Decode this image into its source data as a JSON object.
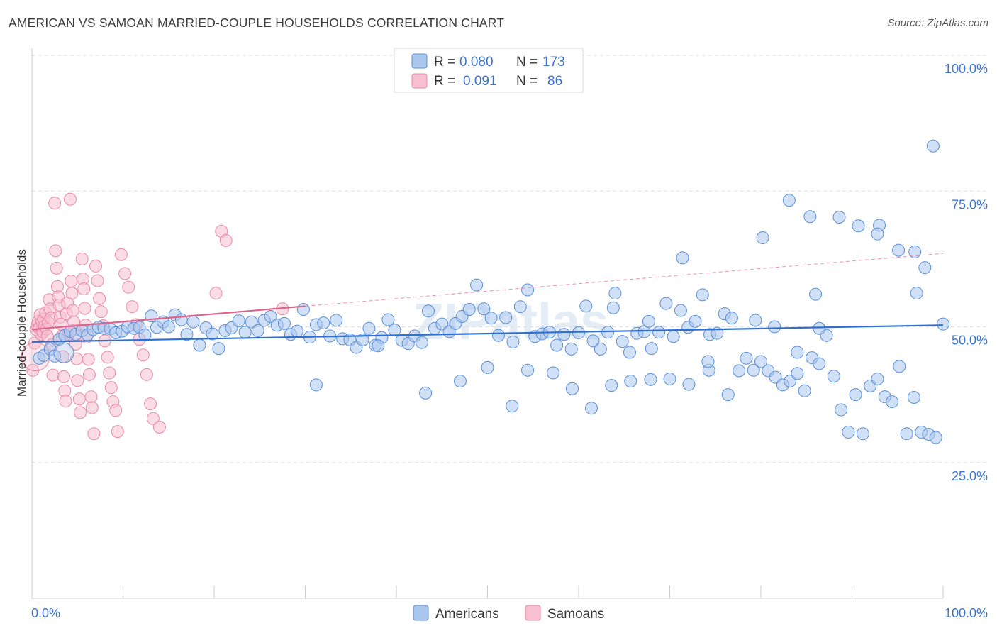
{
  "title": "AMERICAN VS SAMOAN MARRIED-COUPLE HOUSEHOLDS CORRELATION CHART",
  "source": "Source: ZipAtlas.com",
  "watermark": "ZIPatlas",
  "colors": {
    "americans": "#a9c7ee",
    "americans_stroke": "#5b8fd6",
    "americans_line": "#2f6fd1",
    "samoans": "#f7bfd0",
    "samoans_stroke": "#e98aa8",
    "samoans_line": "#e0638a",
    "axis_label": "#3b74c8",
    "grid": "#dddddd"
  },
  "legend": {
    "r_label": "R =",
    "n_label": "N =",
    "americans": {
      "r": "0.080",
      "n": "173"
    },
    "samoans": {
      "r": "0.091",
      "n": "86"
    }
  },
  "chart_data": {
    "type": "scatter",
    "title": "AMERICAN VS SAMOAN MARRIED-COUPLE HOUSEHOLDS CORRELATION CHART",
    "xlabel": "",
    "ylabel": "Married-couple Households",
    "xlim": [
      0,
      100
    ],
    "ylim": [
      0,
      100
    ],
    "x_tick_labels": [
      "0.0%",
      "100.0%"
    ],
    "y_tick_labels": [
      "25.0%",
      "50.0%",
      "75.0%",
      "100.0%"
    ],
    "y_ticks": [
      25,
      50,
      75,
      100
    ],
    "grid": true,
    "legend_position": "top-center",
    "series": [
      {
        "name": "Americans",
        "trend": {
          "x0": 0,
          "y0": 47.2,
          "x1": 100,
          "y1": 50.3
        },
        "points": [
          [
            0.8,
            44.2
          ],
          [
            1.3,
            44.7
          ],
          [
            2.0,
            45.9
          ],
          [
            2.5,
            44.6
          ],
          [
            3.0,
            47.7
          ],
          [
            3.6,
            48.4
          ],
          [
            4.2,
            49.1
          ],
          [
            4.8,
            48.6
          ],
          [
            5.5,
            49.3
          ],
          [
            6.1,
            48.5
          ],
          [
            6.7,
            49.5
          ],
          [
            7.3,
            49.9
          ],
          [
            7.9,
            49.7
          ],
          [
            8.6,
            49.6
          ],
          [
            9.2,
            48.9
          ],
          [
            9.9,
            49.2
          ],
          [
            10.5,
            50.0
          ],
          [
            11.2,
            49.7
          ],
          [
            11.8,
            49.9
          ],
          [
            12.4,
            48.5
          ],
          [
            13.1,
            52.0
          ],
          [
            13.7,
            49.9
          ],
          [
            14.4,
            50.9
          ],
          [
            15.0,
            50.0
          ],
          [
            15.7,
            52.2
          ],
          [
            16.4,
            51.3
          ],
          [
            17.0,
            48.6
          ],
          [
            17.7,
            50.9
          ],
          [
            18.4,
            46.6
          ],
          [
            19.1,
            49.8
          ],
          [
            19.8,
            48.7
          ],
          [
            20.5,
            46.0
          ],
          [
            21.2,
            49.3
          ],
          [
            21.9,
            49.8
          ],
          [
            22.7,
            51.1
          ],
          [
            23.4,
            49.0
          ],
          [
            24.1,
            50.9
          ],
          [
            24.8,
            49.3
          ],
          [
            25.5,
            51.2
          ],
          [
            26.2,
            51.9
          ],
          [
            26.9,
            50.3
          ],
          [
            27.7,
            50.6
          ],
          [
            28.4,
            48.6
          ],
          [
            29.1,
            49.2
          ],
          [
            29.8,
            53.2
          ],
          [
            30.5,
            48.1
          ],
          [
            31.2,
            50.4
          ],
          [
            32.0,
            50.7
          ],
          [
            32.7,
            48.3
          ],
          [
            33.4,
            51.2
          ],
          [
            34.1,
            47.8
          ],
          [
            34.9,
            47.6
          ],
          [
            35.6,
            46.2
          ],
          [
            36.3,
            47.6
          ],
          [
            37.0,
            49.7
          ],
          [
            37.7,
            46.6
          ],
          [
            38.4,
            48.0
          ],
          [
            39.1,
            51.3
          ],
          [
            39.8,
            49.4
          ],
          [
            40.6,
            47.5
          ],
          [
            41.3,
            46.9
          ],
          [
            42.0,
            48.3
          ],
          [
            42.8,
            47.1
          ],
          [
            43.5,
            52.9
          ],
          [
            44.2,
            49.7
          ],
          [
            45.0,
            50.5
          ],
          [
            45.8,
            49.1
          ],
          [
            46.5,
            50.6
          ],
          [
            47.2,
            51.9
          ],
          [
            48.0,
            53.2
          ],
          [
            48.8,
            57.7
          ],
          [
            49.6,
            53.3
          ],
          [
            50.4,
            51.6
          ],
          [
            51.2,
            48.4
          ],
          [
            52.0,
            51.7
          ],
          [
            52.8,
            47.2
          ],
          [
            53.6,
            53.7
          ],
          [
            54.4,
            56.8
          ],
          [
            55.2,
            48.2
          ],
          [
            56.0,
            48.7
          ],
          [
            56.8,
            49.0
          ],
          [
            57.6,
            46.6
          ],
          [
            58.4,
            48.6
          ],
          [
            59.2,
            45.9
          ],
          [
            60.0,
            48.9
          ],
          [
            60.8,
            53.8
          ],
          [
            61.6,
            47.4
          ],
          [
            62.4,
            45.9
          ],
          [
            63.2,
            49.0
          ],
          [
            64.0,
            56.2
          ],
          [
            64.8,
            47.3
          ],
          [
            65.6,
            45.3
          ],
          [
            66.4,
            48.8
          ],
          [
            67.2,
            49.1
          ],
          [
            68.0,
            46.0
          ],
          [
            68.8,
            49.0
          ],
          [
            69.6,
            54.3
          ],
          [
            70.4,
            48.2
          ],
          [
            71.2,
            53.0
          ],
          [
            72.0,
            49.9
          ],
          [
            72.8,
            51.0
          ],
          [
            73.6,
            55.9
          ],
          [
            74.4,
            48.6
          ],
          [
            75.2,
            48.8
          ],
          [
            76.0,
            52.4
          ],
          [
            76.8,
            51.6
          ],
          [
            77.6,
            41.9
          ],
          [
            78.4,
            44.2
          ],
          [
            79.2,
            42.0
          ],
          [
            80.0,
            43.6
          ],
          [
            80.8,
            41.9
          ],
          [
            81.6,
            40.7
          ],
          [
            82.4,
            39.3
          ],
          [
            83.2,
            40.0
          ],
          [
            84.0,
            41.4
          ],
          [
            84.8,
            38.2
          ],
          [
            85.6,
            44.3
          ],
          [
            86.4,
            43.2
          ],
          [
            87.2,
            48.4
          ],
          [
            88.0,
            40.9
          ],
          [
            88.8,
            34.7
          ],
          [
            89.6,
            30.6
          ],
          [
            90.4,
            37.5
          ],
          [
            91.2,
            30.3
          ],
          [
            92.0,
            39.1
          ],
          [
            92.8,
            40.4
          ],
          [
            93.6,
            37.1
          ],
          [
            94.4,
            36.2
          ],
          [
            95.2,
            42.7
          ],
          [
            96.0,
            30.3
          ],
          [
            96.8,
            37.0
          ],
          [
            97.6,
            30.6
          ],
          [
            98.4,
            30.2
          ],
          [
            99.2,
            29.6
          ],
          [
            31.2,
            39.3
          ],
          [
            38.0,
            46.5
          ],
          [
            43.2,
            37.8
          ],
          [
            47.0,
            40.0
          ],
          [
            50.0,
            42.5
          ],
          [
            52.7,
            35.4
          ],
          [
            54.4,
            42.0
          ],
          [
            57.2,
            41.5
          ],
          [
            59.3,
            38.6
          ],
          [
            61.4,
            35.0
          ],
          [
            63.6,
            39.2
          ],
          [
            65.7,
            40.0
          ],
          [
            67.9,
            40.3
          ],
          [
            70.0,
            40.4
          ],
          [
            72.1,
            39.4
          ],
          [
            74.3,
            42.0
          ],
          [
            76.4,
            37.5
          ],
          [
            71.4,
            62.7
          ],
          [
            80.2,
            66.4
          ],
          [
            83.1,
            73.3
          ],
          [
            85.4,
            70.3
          ],
          [
            88.6,
            70.2
          ],
          [
            90.7,
            68.6
          ],
          [
            93.0,
            68.7
          ],
          [
            96.9,
            63.8
          ],
          [
            98.9,
            83.3
          ],
          [
            97.1,
            56.2
          ],
          [
            95.1,
            64.1
          ],
          [
            98.0,
            60.9
          ],
          [
            92.8,
            67.1
          ],
          [
            100.0,
            50.5
          ],
          [
            84.0,
            45.3
          ],
          [
            86.4,
            49.7
          ],
          [
            86.0,
            56.0
          ],
          [
            81.5,
            50.0
          ],
          [
            79.4,
            51.2
          ],
          [
            74.2,
            43.6
          ],
          [
            67.7,
            51.0
          ],
          [
            63.8,
            53.5
          ]
        ]
      },
      {
        "name": "Samoans",
        "trend": {
          "x0": 0,
          "y0": 49.5,
          "x1": 30,
          "y1": 53.8,
          "dashed_to_x": 100,
          "dashed_to_y": 63.5
        },
        "points": [
          [
            0.1,
            42.0
          ],
          [
            0.3,
            47.0
          ],
          [
            0.5,
            49.5
          ],
          [
            0.6,
            50.3
          ],
          [
            0.7,
            51.0
          ],
          [
            0.8,
            49.7
          ],
          [
            0.9,
            52.2
          ],
          [
            1.0,
            48.6
          ],
          [
            1.1,
            50.9
          ],
          [
            1.2,
            49.0
          ],
          [
            1.3,
            51.4
          ],
          [
            1.4,
            50.1
          ],
          [
            1.5,
            52.6
          ],
          [
            1.6,
            49.6
          ],
          [
            1.7,
            48.3
          ],
          [
            1.8,
            50.8
          ],
          [
            1.9,
            55.0
          ],
          [
            2.0,
            53.3
          ],
          [
            2.1,
            51.6
          ],
          [
            2.2,
            46.7
          ],
          [
            2.3,
            41.1
          ],
          [
            2.5,
            72.8
          ],
          [
            2.6,
            64.0
          ],
          [
            2.7,
            60.8
          ],
          [
            2.8,
            57.4
          ],
          [
            2.9,
            55.5
          ],
          [
            3.0,
            54.0
          ],
          [
            3.1,
            51.8
          ],
          [
            3.2,
            50.5
          ],
          [
            3.3,
            48.3
          ],
          [
            3.4,
            44.5
          ],
          [
            3.5,
            40.8
          ],
          [
            3.6,
            38.2
          ],
          [
            3.7,
            36.3
          ],
          [
            3.8,
            52.4
          ],
          [
            3.9,
            54.4
          ],
          [
            4.0,
            48.6
          ],
          [
            4.2,
            73.5
          ],
          [
            4.3,
            58.4
          ],
          [
            4.4,
            56.2
          ],
          [
            4.5,
            53.0
          ],
          [
            4.6,
            50.9
          ],
          [
            4.7,
            49.4
          ],
          [
            4.8,
            46.8
          ],
          [
            4.9,
            44.1
          ],
          [
            5.0,
            40.1
          ],
          [
            5.2,
            36.7
          ],
          [
            5.3,
            34.2
          ],
          [
            5.5,
            62.5
          ],
          [
            5.6,
            58.8
          ],
          [
            5.7,
            57.0
          ],
          [
            5.8,
            53.4
          ],
          [
            5.9,
            50.3
          ],
          [
            6.0,
            48.1
          ],
          [
            6.2,
            44.0
          ],
          [
            6.3,
            41.2
          ],
          [
            6.5,
            37.1
          ],
          [
            6.6,
            35.1
          ],
          [
            6.8,
            30.3
          ],
          [
            7.0,
            61.2
          ],
          [
            7.2,
            58.5
          ],
          [
            7.4,
            55.2
          ],
          [
            7.6,
            52.8
          ],
          [
            7.8,
            50.2
          ],
          [
            8.0,
            47.4
          ],
          [
            8.3,
            44.4
          ],
          [
            8.5,
            41.5
          ],
          [
            8.7,
            38.8
          ],
          [
            8.9,
            36.2
          ],
          [
            9.2,
            34.6
          ],
          [
            9.4,
            30.7
          ],
          [
            9.8,
            63.3
          ],
          [
            10.2,
            59.8
          ],
          [
            10.6,
            57.3
          ],
          [
            11.0,
            53.7
          ],
          [
            11.4,
            50.4
          ],
          [
            11.8,
            47.7
          ],
          [
            12.2,
            44.8
          ],
          [
            12.6,
            41.2
          ],
          [
            13.0,
            35.8
          ],
          [
            13.3,
            33.1
          ],
          [
            14.0,
            31.5
          ],
          [
            20.8,
            67.6
          ],
          [
            21.3,
            65.9
          ],
          [
            20.2,
            56.2
          ],
          [
            27.5,
            53.3
          ]
        ]
      }
    ]
  },
  "bottom_legend": {
    "americans": "Americans",
    "samoans": "Samoans"
  }
}
